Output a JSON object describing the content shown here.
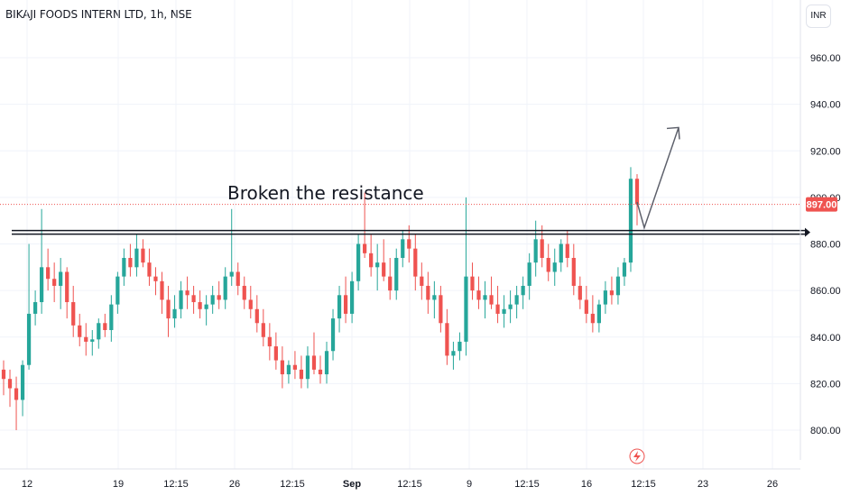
{
  "symbol": {
    "title": "BIKAJI FOODS INTERN LTD, 1h, NSE"
  },
  "currency": {
    "label": "INR"
  },
  "annotation": {
    "text": "Broken the resistance"
  },
  "colors": {
    "up": "#26a69a",
    "down": "#ef5350",
    "grid": "#f0f3fa",
    "line": "#131722",
    "price_line": "#ef5350",
    "arrow": "#5d606b"
  },
  "icons": {
    "flash": "lightning-icon"
  },
  "chart_data": {
    "type": "candlestick",
    "title": "BIKAJI FOODS INTERN LTD, 1h, NSE",
    "y_range": [
      785,
      985
    ],
    "y_ticks": [
      "960.00",
      "940.00",
      "920.00",
      "900.00",
      "880.00",
      "860.00",
      "840.00",
      "820.00",
      "800.00"
    ],
    "x_tick_labels": [
      "12",
      "19",
      "12:15",
      "26",
      "12:15",
      "Sep",
      "12:15",
      "9",
      "12:15",
      "16",
      "12:15",
      "23",
      "26"
    ],
    "last_price": "897.00",
    "resistance_level": 885,
    "projection": {
      "from": 898,
      "dip": 887,
      "target": 930
    },
    "candles": [
      [
        826,
        830,
        815,
        822
      ],
      [
        822,
        826,
        810,
        818
      ],
      [
        818,
        823,
        800,
        813
      ],
      [
        813,
        830,
        806,
        828
      ],
      [
        828,
        880,
        826,
        850
      ],
      [
        850,
        860,
        845,
        855
      ],
      [
        855,
        895,
        850,
        870
      ],
      [
        870,
        878,
        860,
        865
      ],
      [
        865,
        872,
        855,
        862
      ],
      [
        862,
        874,
        852,
        868
      ],
      [
        868,
        870,
        848,
        855
      ],
      [
        855,
        862,
        840,
        845
      ],
      [
        845,
        850,
        836,
        840
      ],
      [
        840,
        846,
        832,
        838
      ],
      [
        838,
        843,
        832,
        839
      ],
      [
        839,
        848,
        835,
        846
      ],
      [
        846,
        850,
        840,
        843
      ],
      [
        843,
        858,
        838,
        854
      ],
      [
        854,
        868,
        850,
        866
      ],
      [
        866,
        878,
        862,
        874
      ],
      [
        874,
        880,
        866,
        870
      ],
      [
        870,
        884,
        866,
        878
      ],
      [
        878,
        882,
        870,
        872
      ],
      [
        872,
        878,
        862,
        866
      ],
      [
        866,
        870,
        858,
        864
      ],
      [
        864,
        868,
        850,
        856
      ],
      [
        856,
        862,
        840,
        848
      ],
      [
        848,
        858,
        844,
        852
      ],
      [
        852,
        864,
        848,
        860
      ],
      [
        860,
        866,
        852,
        858
      ],
      [
        858,
        862,
        850,
        855
      ],
      [
        855,
        860,
        848,
        852
      ],
      [
        852,
        858,
        845,
        854
      ],
      [
        854,
        862,
        850,
        858
      ],
      [
        858,
        864,
        852,
        856
      ],
      [
        856,
        870,
        852,
        866
      ],
      [
        866,
        895,
        862,
        868
      ],
      [
        868,
        872,
        858,
        862
      ],
      [
        862,
        866,
        852,
        856
      ],
      [
        856,
        862,
        848,
        852
      ],
      [
        852,
        858,
        842,
        846
      ],
      [
        846,
        852,
        836,
        840
      ],
      [
        840,
        846,
        830,
        836
      ],
      [
        836,
        842,
        826,
        830
      ],
      [
        830,
        836,
        818,
        824
      ],
      [
        824,
        830,
        820,
        828
      ],
      [
        828,
        834,
        822,
        826
      ],
      [
        826,
        832,
        818,
        822
      ],
      [
        822,
        836,
        818,
        832
      ],
      [
        832,
        842,
        824,
        826
      ],
      [
        826,
        832,
        820,
        824
      ],
      [
        824,
        838,
        820,
        834
      ],
      [
        834,
        852,
        830,
        848
      ],
      [
        848,
        862,
        842,
        858
      ],
      [
        858,
        866,
        846,
        850
      ],
      [
        850,
        868,
        846,
        864
      ],
      [
        864,
        884,
        860,
        880
      ],
      [
        880,
        902,
        874,
        876
      ],
      [
        876,
        884,
        866,
        870
      ],
      [
        870,
        880,
        860,
        872
      ],
      [
        872,
        882,
        864,
        866
      ],
      [
        866,
        874,
        856,
        860
      ],
      [
        860,
        878,
        856,
        874
      ],
      [
        874,
        886,
        870,
        882
      ],
      [
        882,
        888,
        872,
        878
      ],
      [
        878,
        884,
        860,
        866
      ],
      [
        866,
        872,
        856,
        862
      ],
      [
        862,
        868,
        850,
        856
      ],
      [
        856,
        864,
        848,
        858
      ],
      [
        858,
        862,
        842,
        846
      ],
      [
        846,
        852,
        828,
        832
      ],
      [
        832,
        838,
        826,
        834
      ],
      [
        834,
        842,
        830,
        838
      ],
      [
        838,
        900,
        832,
        866
      ],
      [
        866,
        872,
        856,
        860
      ],
      [
        860,
        866,
        852,
        856
      ],
      [
        856,
        864,
        848,
        858
      ],
      [
        858,
        866,
        852,
        854
      ],
      [
        854,
        862,
        846,
        850
      ],
      [
        850,
        858,
        844,
        852
      ],
      [
        852,
        860,
        846,
        854
      ],
      [
        854,
        862,
        848,
        858
      ],
      [
        858,
        866,
        852,
        862
      ],
      [
        862,
        876,
        856,
        872
      ],
      [
        872,
        890,
        866,
        882
      ],
      [
        882,
        888,
        870,
        874
      ],
      [
        874,
        880,
        864,
        868
      ],
      [
        868,
        878,
        862,
        872
      ],
      [
        872,
        882,
        868,
        880
      ],
      [
        880,
        886,
        870,
        874
      ],
      [
        874,
        880,
        858,
        862
      ],
      [
        862,
        866,
        852,
        856
      ],
      [
        856,
        862,
        846,
        850
      ],
      [
        850,
        858,
        842,
        846
      ],
      [
        846,
        856,
        842,
        854
      ],
      [
        854,
        864,
        850,
        860
      ],
      [
        860,
        866,
        854,
        858
      ],
      [
        858,
        870,
        854,
        866
      ],
      [
        866,
        874,
        862,
        872
      ],
      [
        872,
        913,
        868,
        908
      ],
      [
        908,
        910,
        888,
        897
      ]
    ]
  }
}
